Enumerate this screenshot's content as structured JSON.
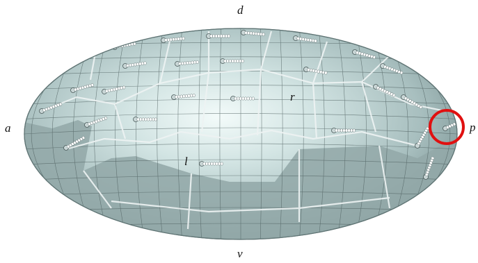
{
  "labels": {
    "d": "d",
    "v": "v",
    "a": "a",
    "p": "p",
    "r": "r",
    "l": "l"
  },
  "colors": {
    "shell_light": "#eef7f6",
    "shell_mid": "#b9cfcf",
    "shell_dark": "#7f9696",
    "plate_dark": "#8ea3a3",
    "mesh_line": "#4a5a5a",
    "plate_edge": "#f1f5f5",
    "highlight_circle": "#e01010",
    "bristle": "#ffffff"
  },
  "icons": {
    "shell": "ellipsoid-shell",
    "plate": "mesh-plate",
    "bristle": "bristle-chain",
    "highlight": "red-circle-marker"
  }
}
